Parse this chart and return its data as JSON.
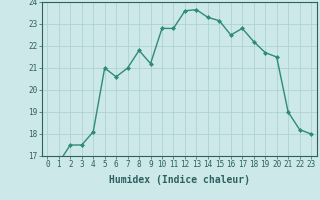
{
  "xlabel": "Humidex (Indice chaleur)",
  "x": [
    0,
    1,
    2,
    3,
    4,
    5,
    6,
    7,
    8,
    9,
    10,
    11,
    12,
    13,
    14,
    15,
    16,
    17,
    18,
    19,
    20,
    21,
    22,
    23
  ],
  "y": [
    16.7,
    16.7,
    17.5,
    17.5,
    18.1,
    21.0,
    20.6,
    21.0,
    21.8,
    21.2,
    22.8,
    22.8,
    23.6,
    23.65,
    23.3,
    23.15,
    22.5,
    22.8,
    22.2,
    21.7,
    21.5,
    19.0,
    18.2,
    18.0
  ],
  "line_color": "#2e8b77",
  "marker": "D",
  "marker_size": 2.0,
  "bg_color": "#cce8e8",
  "grid_color": "#aacece",
  "ylim": [
    17,
    24
  ],
  "xlim": [
    -0.5,
    23.5
  ],
  "yticks": [
    17,
    18,
    19,
    20,
    21,
    22,
    23,
    24
  ],
  "xticks": [
    0,
    1,
    2,
    3,
    4,
    5,
    6,
    7,
    8,
    9,
    10,
    11,
    12,
    13,
    14,
    15,
    16,
    17,
    18,
    19,
    20,
    21,
    22,
    23
  ],
  "tick_fontsize": 5.5,
  "xlabel_fontsize": 7.0,
  "line_width": 1.0
}
